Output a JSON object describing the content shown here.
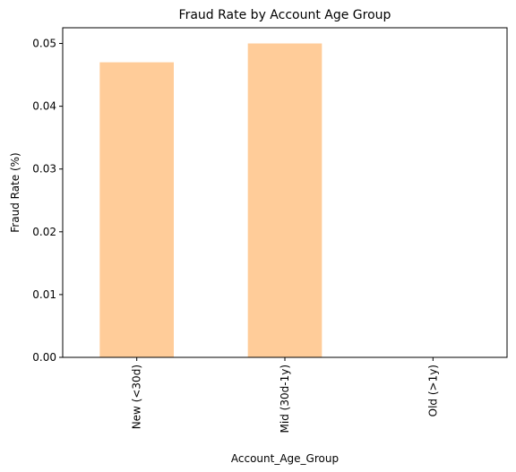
{
  "chart_data": {
    "type": "bar",
    "title": "Fraud Rate by Account Age Group",
    "xlabel": "Account_Age_Group",
    "ylabel": "Fraud Rate (%)",
    "categories": [
      "New (<30d)",
      "Mid (30d-1y)",
      "Old (>1y)"
    ],
    "values": [
      0.047,
      0.05,
      0.0
    ],
    "ylim": [
      0,
      0.0525
    ],
    "yticks": [
      0.0,
      0.01,
      0.02,
      0.03,
      0.04,
      0.05
    ],
    "ytick_labels": [
      "0.00",
      "0.01",
      "0.02",
      "0.03",
      "0.04",
      "0.05"
    ],
    "grid": false,
    "legend": "none",
    "bar_color": "#FFCC99",
    "label_rotation": "vertical"
  }
}
